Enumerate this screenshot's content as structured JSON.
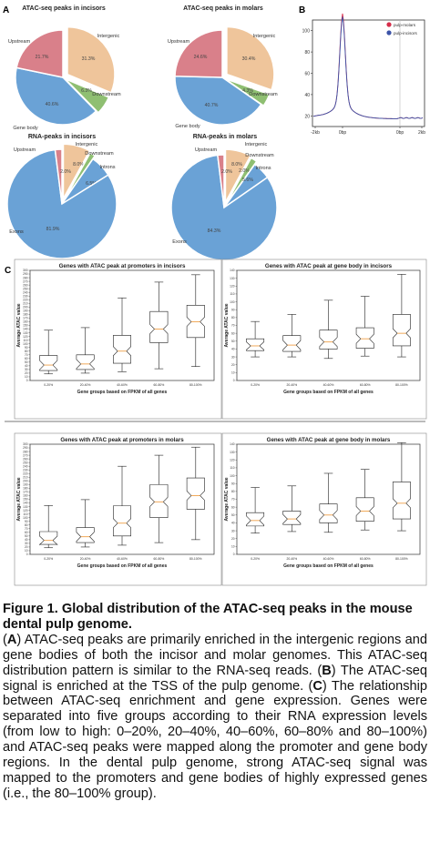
{
  "panel_labels": {
    "a": "A",
    "b": "B",
    "c": "C"
  },
  "colors": {
    "upstream": "#d9808a",
    "intergenic": "#efc59b",
    "downstream": "#8fbf72",
    "genebody": "#6aa2d6",
    "introns": "#6aa2d6",
    "exons": "#6aa2d6",
    "pulp_molars": "#d62d4a",
    "pulp_incisors": "#3c54a8",
    "median": "#f0a048"
  },
  "chart_data": [
    {
      "type": "pie",
      "title": "ATAC-seq peaks in incisors",
      "slices": [
        {
          "label": "Intergenic",
          "value": 31.3,
          "text": "31.3%",
          "color_key": "intergenic"
        },
        {
          "label": "Downstream",
          "value": 6.3,
          "text": "6.3%",
          "color_key": "downstream"
        },
        {
          "label": "Gene body",
          "value": 40.6,
          "text": "40.6%",
          "color_key": "genebody"
        },
        {
          "label": "Upstream",
          "value": 21.7,
          "text": "21.7%",
          "color_key": "upstream"
        }
      ]
    },
    {
      "type": "pie",
      "title": "ATAC-seq peaks in molars",
      "slices": [
        {
          "label": "Intergenic",
          "value": 30.4,
          "text": "30.4%",
          "color_key": "intergenic"
        },
        {
          "label": "Downstream",
          "value": 4.3,
          "text": "4.3%",
          "color_key": "downstream"
        },
        {
          "label": "Gene body",
          "value": 40.7,
          "text": "40.7%",
          "color_key": "genebody"
        },
        {
          "label": "Upstream",
          "value": 24.6,
          "text": "24.6%",
          "color_key": "upstream"
        }
      ]
    },
    {
      "type": "pie",
      "title": "RNA-peaks in incisors",
      "slices": [
        {
          "label": "Intergenic",
          "value": 8.0,
          "text": "8.0%",
          "color_key": "intergenic"
        },
        {
          "label": "Downstream",
          "value": 1.6,
          "text": "",
          "color_key": "downstream"
        },
        {
          "label": "Introns",
          "value": 6.5,
          "text": "6.5%",
          "color_key": "introns"
        },
        {
          "label": "Exons",
          "value": 81.9,
          "text": "81.9%",
          "color_key": "exons"
        },
        {
          "label": "Upstream",
          "value": 2.0,
          "text": "2.0%",
          "color_key": "upstream"
        }
      ]
    },
    {
      "type": "pie",
      "title": "RNA-peaks in molars",
      "slices": [
        {
          "label": "Intergenic",
          "value": 8.0,
          "text": "8.0%",
          "color_key": "intergenic"
        },
        {
          "label": "Downstream",
          "value": 2.0,
          "text": "2.0%",
          "color_key": "downstream"
        },
        {
          "label": "Introns",
          "value": 5.6,
          "text": "5.6%",
          "color_key": "introns"
        },
        {
          "label": "Exons",
          "value": 84.3,
          "text": "84.3%",
          "color_key": "exons"
        },
        {
          "label": "Upstream",
          "value": 2.0,
          "text": "2.0%",
          "color_key": "upstream"
        }
      ]
    },
    {
      "type": "line",
      "title": "",
      "x_ticks": [
        "-2kb",
        "0bp",
        "0bp",
        "2kb"
      ],
      "y_ticks": [
        20,
        40,
        60,
        80,
        100
      ],
      "ylim": [
        10,
        110
      ],
      "legend": [
        "pulp-molars",
        "pulp-incisors"
      ],
      "legend_position": "top-right"
    },
    {
      "type": "box",
      "title": "Genes with ATAC peak at promoters in incisors",
      "xlabel": "Gene groups based on FPKM of all genes",
      "ylabel": "Average ATAC value",
      "ylim": [
        0,
        300
      ],
      "y_tick_step": 10,
      "categories": [
        "0-20%",
        "20-40%",
        "40-60%",
        "60-80%",
        "80-100%"
      ],
      "boxes": [
        {
          "whislo": 18,
          "q1": 27,
          "med": 42,
          "q3": 68,
          "whishi": 137
        },
        {
          "whislo": 20,
          "q1": 30,
          "med": 45,
          "q3": 70,
          "whishi": 144
        },
        {
          "whislo": 24,
          "q1": 47,
          "med": 80,
          "q3": 123,
          "whishi": 225
        },
        {
          "whislo": 32,
          "q1": 103,
          "med": 140,
          "q3": 188,
          "whishi": 268
        },
        {
          "whislo": 38,
          "q1": 117,
          "med": 160,
          "q3": 205,
          "whishi": 288
        }
      ]
    },
    {
      "type": "box",
      "title": "Genes with ATAC peak at gene body in incisors",
      "xlabel": "Gene groups based on FPKM of all genes",
      "ylabel": "Average ATAC value",
      "ylim": [
        0,
        140
      ],
      "y_tick_step": 10,
      "categories": [
        "0-20%",
        "20-40%",
        "40-60%",
        "60-80%",
        "80-100%"
      ],
      "boxes": [
        {
          "whislo": 30,
          "q1": 38,
          "med": 44,
          "q3": 53,
          "whishi": 75
        },
        {
          "whislo": 30,
          "q1": 37,
          "med": 45,
          "q3": 57,
          "whishi": 84
        },
        {
          "whislo": 28,
          "q1": 40,
          "med": 49,
          "q3": 64,
          "whishi": 102
        },
        {
          "whislo": 31,
          "q1": 41,
          "med": 53,
          "q3": 67,
          "whishi": 107
        },
        {
          "whislo": 30,
          "q1": 44,
          "med": 60,
          "q3": 84,
          "whishi": 135
        }
      ]
    },
    {
      "type": "box",
      "title": "Genes with ATAC peak at promoters in molars",
      "xlabel": "Gene groups based on FPKM of all genes",
      "ylabel": "Average ATAC value",
      "ylim": [
        0,
        300
      ],
      "y_tick_step": 10,
      "categories": [
        "0-20%",
        "20-40%",
        "40-60%",
        "60-80%",
        "80-100%"
      ],
      "boxes": [
        {
          "whislo": 18,
          "q1": 27,
          "med": 38,
          "q3": 62,
          "whishi": 133
        },
        {
          "whislo": 20,
          "q1": 32,
          "med": 48,
          "q3": 73,
          "whishi": 149
        },
        {
          "whislo": 25,
          "q1": 50,
          "med": 85,
          "q3": 132,
          "whishi": 240
        },
        {
          "whislo": 32,
          "q1": 100,
          "med": 143,
          "q3": 190,
          "whishi": 270
        },
        {
          "whislo": 40,
          "q1": 123,
          "med": 160,
          "q3": 208,
          "whishi": 292
        }
      ]
    },
    {
      "type": "box",
      "title": "Genes with ATAC peak at gene body in molars",
      "xlabel": "Gene groups based on FPKM of all genes",
      "ylabel": "Average ATAC value",
      "ylim": [
        0,
        140
      ],
      "y_tick_step": 10,
      "categories": [
        "0-20%",
        "20-40%",
        "40-60%",
        "60-80%",
        "80-100%"
      ],
      "boxes": [
        {
          "whislo": 27,
          "q1": 36,
          "med": 43,
          "q3": 53,
          "whishi": 85
        },
        {
          "whislo": 29,
          "q1": 38,
          "med": 45,
          "q3": 55,
          "whishi": 87
        },
        {
          "whislo": 28,
          "q1": 40,
          "med": 50,
          "q3": 64,
          "whishi": 103
        },
        {
          "whislo": 31,
          "q1": 42,
          "med": 55,
          "q3": 72,
          "whishi": 108
        },
        {
          "whislo": 30,
          "q1": 45,
          "med": 65,
          "q3": 92,
          "whishi": 142
        }
      ]
    }
  ],
  "caption": {
    "title": "Figure 1. Global distribution of the ATAC-seq peaks in the mouse dental pulp genome.",
    "segments": [
      {
        "text": "(",
        "bold": false
      },
      {
        "text": "A",
        "bold": true
      },
      {
        "text": ") ATAC-seq peaks are primarily enriched in the intergenic regions and gene bodies of both the incisor and molar genomes. This ATAC-seq distribution pattern is similar to the RNA-seq reads. (",
        "bold": false
      },
      {
        "text": "B",
        "bold": true
      },
      {
        "text": ") The ATAC-seq signal is enriched at the TSS of the pulp genome. (",
        "bold": false
      },
      {
        "text": "C",
        "bold": true
      },
      {
        "text": ") The relationship between ATAC-seq enrichment and gene expression. Genes were separated into five groups according to their RNA expression levels (from low to high: 0–20%, 20–40%, 40–60%, 60–80% and 80–100%) and ATAC-seq peaks were mapped along the promoter and gene body regions. In the dental pulp genome, strong ATAC-seq signal was mapped to the promoters and gene bodies of highly expressed genes (i.e., the 80–100% group).",
        "bold": false
      }
    ]
  }
}
